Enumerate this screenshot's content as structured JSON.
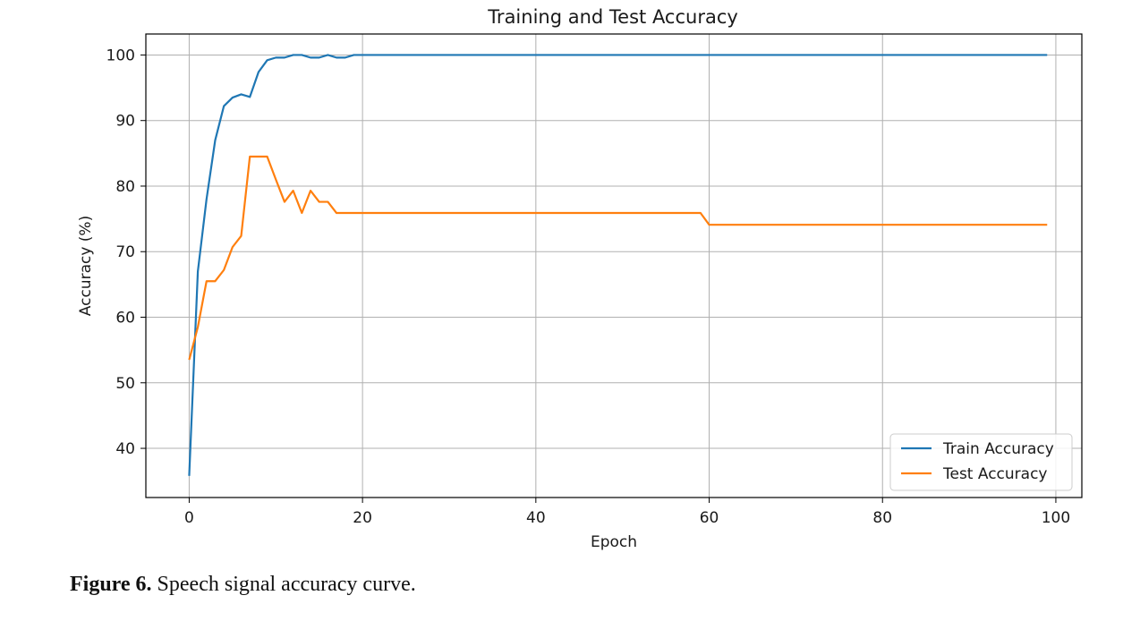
{
  "figure": {
    "caption_label": "Figure 6.",
    "caption_text": " Speech signal accuracy curve."
  },
  "chart_data": {
    "type": "line",
    "title": "Training and Test Accuracy",
    "xlabel": "Epoch",
    "ylabel": "Accuracy (%)",
    "xlim": [
      -5,
      103
    ],
    "ylim": [
      32.5,
      103.2
    ],
    "xticks": [
      0,
      20,
      40,
      60,
      80,
      100
    ],
    "yticks": [
      40,
      50,
      60,
      70,
      80,
      90,
      100
    ],
    "grid": true,
    "legend_position": "lower-right",
    "series": [
      {
        "name": "Train Accuracy",
        "color": "#1f77b4",
        "points": [
          [
            0,
            35.8
          ],
          [
            1,
            67.0
          ],
          [
            2,
            78.0
          ],
          [
            3,
            87.0
          ],
          [
            4,
            92.2
          ],
          [
            5,
            93.5
          ],
          [
            6,
            94.0
          ],
          [
            7,
            93.6
          ],
          [
            8,
            97.4
          ],
          [
            9,
            99.2
          ],
          [
            10,
            99.6
          ],
          [
            11,
            99.6
          ],
          [
            12,
            100
          ],
          [
            13,
            100
          ],
          [
            14,
            99.6
          ],
          [
            15,
            99.6
          ],
          [
            16,
            100
          ],
          [
            17,
            99.6
          ],
          [
            18,
            99.6
          ],
          [
            19,
            100
          ],
          [
            99,
            100
          ]
        ]
      },
      {
        "name": "Test Accuracy",
        "color": "#ff7f0e",
        "points": [
          [
            0,
            53.5
          ],
          [
            1,
            58.5
          ],
          [
            2,
            65.5
          ],
          [
            3,
            65.5
          ],
          [
            4,
            67.2
          ],
          [
            5,
            70.7
          ],
          [
            6,
            72.4
          ],
          [
            7,
            84.5
          ],
          [
            8,
            84.5
          ],
          [
            9,
            84.5
          ],
          [
            10,
            81.0
          ],
          [
            11,
            77.6
          ],
          [
            12,
            79.3
          ],
          [
            13,
            75.9
          ],
          [
            14,
            79.3
          ],
          [
            15,
            77.6
          ],
          [
            16,
            77.6
          ],
          [
            17,
            75.9
          ],
          [
            59,
            75.9
          ],
          [
            60,
            74.1
          ],
          [
            99,
            74.1
          ]
        ]
      }
    ]
  }
}
